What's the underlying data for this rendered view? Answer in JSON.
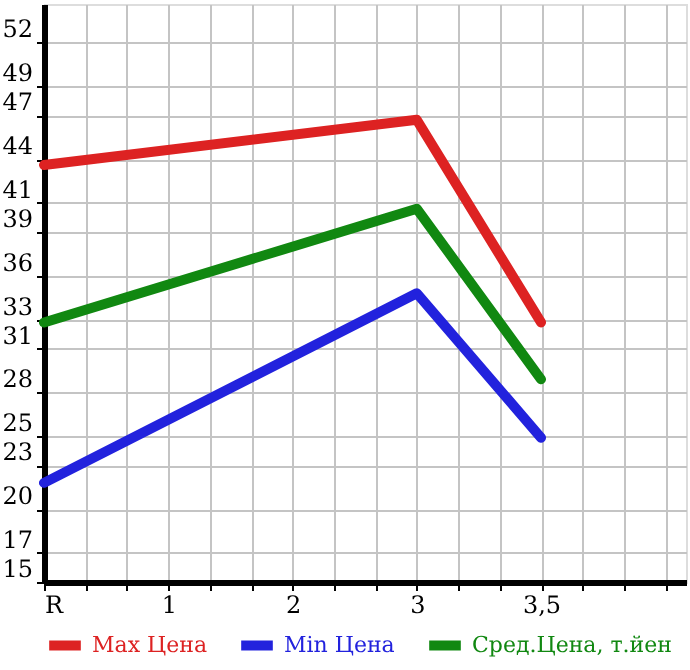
{
  "chart_data": {
    "type": "line",
    "categories": [
      "R",
      "1",
      "2",
      "3",
      "3,5"
    ],
    "series": [
      {
        "name": "Max Цена",
        "color": "#dd2222",
        "values": [
          43.6,
          null,
          null,
          46.7,
          32.8
        ]
      },
      {
        "name": "Min Цена",
        "color": "#2222dd",
        "values": [
          21.8,
          null,
          null,
          34.8,
          24.9
        ]
      },
      {
        "name": "Сред.Цена, т.йен",
        "color": "#118811",
        "values": [
          32.8,
          null,
          null,
          40.6,
          28.9
        ]
      }
    ],
    "ylim": [
      15,
      54.64
    ],
    "yticks": [
      15,
      17,
      20,
      23,
      25,
      28,
      31,
      33,
      36,
      39,
      41,
      44,
      47,
      49,
      52
    ],
    "grid": true,
    "legend": "bottom",
    "marker": "none",
    "line_style": "solid"
  }
}
